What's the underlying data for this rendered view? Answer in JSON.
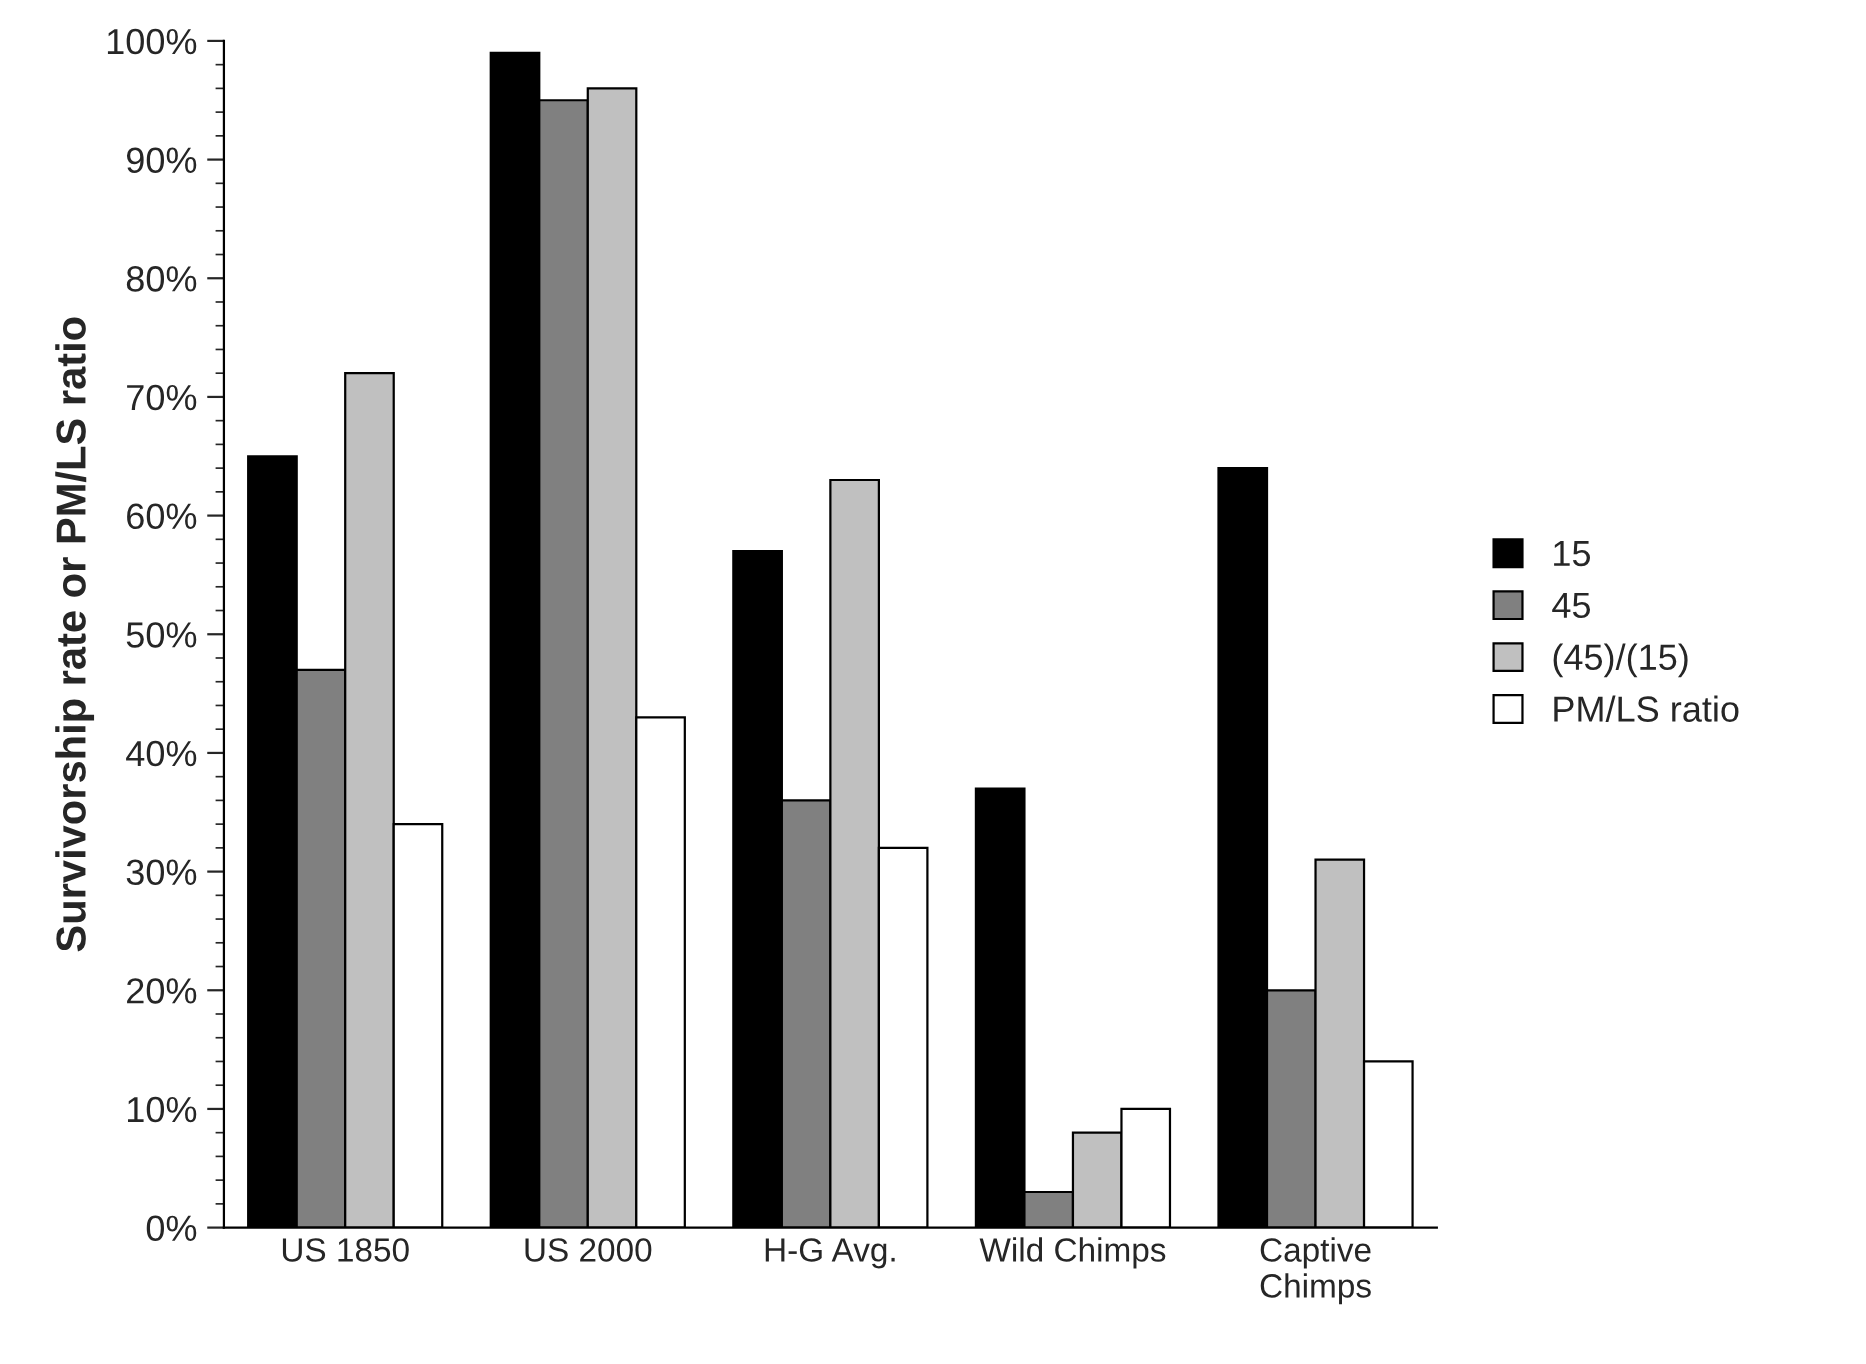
{
  "chart_data": {
    "type": "bar",
    "ylabel": "Survivorship rate or PM/LS ratio",
    "categories": [
      "US 1850",
      "US 2000",
      "H-G Avg.",
      "Wild Chimps",
      "Captive\nChimps"
    ],
    "series": [
      {
        "name": "15",
        "color": "#000000",
        "values": [
          65,
          99,
          57,
          37,
          64
        ]
      },
      {
        "name": "45",
        "color": "#808080",
        "values": [
          47,
          95,
          36,
          3,
          20
        ]
      },
      {
        "name": "(45)/(15)",
        "color": "#c0c0c0",
        "values": [
          72,
          96,
          63,
          8,
          31
        ]
      },
      {
        "name": "PM/LS ratio",
        "color": "#ffffff",
        "values": [
          34,
          43,
          32,
          10,
          14
        ]
      }
    ],
    "ylim": [
      0,
      100
    ],
    "yticks": [
      {
        "value": 0,
        "label": "0%"
      },
      {
        "value": 10,
        "label": "10%"
      },
      {
        "value": 20,
        "label": "20%"
      },
      {
        "value": 30,
        "label": "30%"
      },
      {
        "value": 40,
        "label": "40%"
      },
      {
        "value": 50,
        "label": "50%"
      },
      {
        "value": 60,
        "label": "60%"
      },
      {
        "value": 70,
        "label": "70%"
      },
      {
        "value": 80,
        "label": "80%"
      },
      {
        "value": 90,
        "label": "90%"
      },
      {
        "value": 100,
        "label": "100%"
      }
    ],
    "grid": false,
    "legend": "right"
  }
}
